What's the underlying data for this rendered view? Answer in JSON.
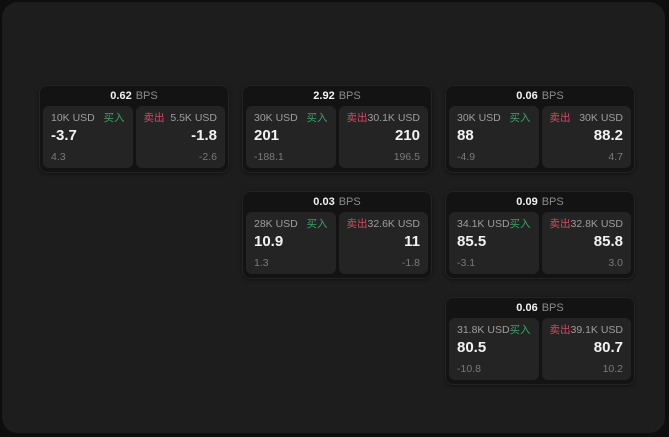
{
  "labels": {
    "buy": "买入",
    "sell": "卖出",
    "bps_unit": "BPS"
  },
  "colors": {
    "buy": "#3aa365",
    "sell": "#d34a63",
    "page_bg": "#0e0e0e",
    "panel_bg": "#1d1d1e",
    "card_bg": "#131313",
    "tile_bg": "#242424",
    "text_bright": "#f2f2f2",
    "text_gray": "#9e9e9e",
    "text_dim": "#7a7a7a"
  },
  "cards": [
    {
      "bps": "0.62",
      "buy": {
        "size": "10K USD",
        "value": "-3.7",
        "change": "4.3"
      },
      "sell": {
        "size": "5.5K USD",
        "value": "-1.8",
        "change": "-2.6"
      }
    },
    {
      "bps": "2.92",
      "buy": {
        "size": "30K USD",
        "value": "201",
        "change": "-188.1"
      },
      "sell": {
        "size": "30.1K USD",
        "value": "210",
        "change": "196.5"
      }
    },
    {
      "bps": "0.06",
      "buy": {
        "size": "30K USD",
        "value": "88",
        "change": "-4.9"
      },
      "sell": {
        "size": "30K USD",
        "value": "88.2",
        "change": "4.7"
      }
    },
    {
      "bps": "0.03",
      "buy": {
        "size": "28K USD",
        "value": "10.9",
        "change": "1.3"
      },
      "sell": {
        "size": "32.6K USD",
        "value": "11",
        "change": "-1.8"
      }
    },
    {
      "bps": "0.09",
      "buy": {
        "size": "34.1K USD",
        "value": "85.5",
        "change": "-3.1"
      },
      "sell": {
        "size": "32.8K USD",
        "value": "85.8",
        "change": "3.0"
      }
    },
    {
      "bps": "0.06",
      "buy": {
        "size": "31.8K USD",
        "value": "80.5",
        "change": "-10.8"
      },
      "sell": {
        "size": "39.1K USD",
        "value": "80.7",
        "change": "10.2"
      }
    }
  ]
}
